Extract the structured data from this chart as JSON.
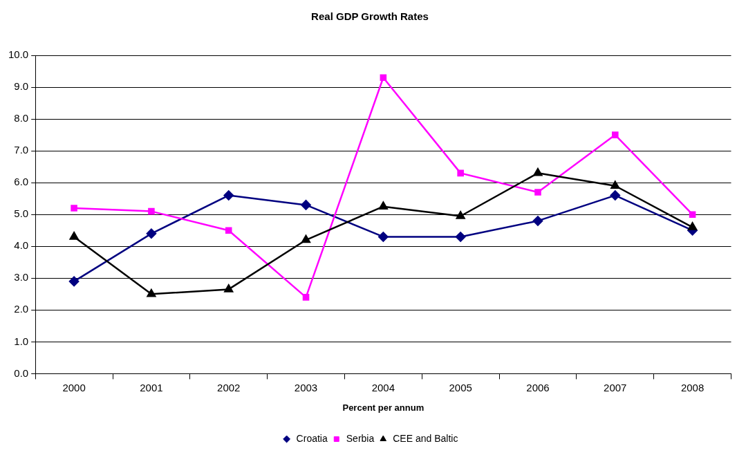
{
  "chart_data": {
    "type": "line",
    "title": "Real GDP Growth Rates",
    "xlabel": "Percent per annum",
    "categories": [
      "2000",
      "2001",
      "2002",
      "2003",
      "2004",
      "2005",
      "2006",
      "2007",
      "2008"
    ],
    "series": [
      {
        "name": "Croatia",
        "color": "#000080",
        "marker": "diamond",
        "values": [
          2.9,
          4.4,
          5.6,
          5.3,
          4.3,
          4.3,
          4.8,
          5.6,
          4.5
        ]
      },
      {
        "name": "Serbia",
        "color": "#ff00ff",
        "marker": "square",
        "values": [
          5.2,
          5.1,
          4.5,
          2.4,
          9.3,
          6.3,
          5.7,
          7.5,
          5.0
        ]
      },
      {
        "name": "CEE and Baltic",
        "color": "#000000",
        "marker": "triangle",
        "values": [
          4.3,
          2.5,
          2.65,
          4.2,
          5.25,
          4.95,
          6.3,
          5.9,
          4.6
        ]
      }
    ],
    "ylim": [
      0,
      10
    ],
    "yticks": [
      {
        "value": 0,
        "label": "0.0"
      },
      {
        "value": 1,
        "label": "1.0"
      },
      {
        "value": 2,
        "label": "2.0"
      },
      {
        "value": 3,
        "label": "3.0"
      },
      {
        "value": 4,
        "label": "4.0"
      },
      {
        "value": 5,
        "label": "5.0"
      },
      {
        "value": 6,
        "label": "6.0"
      },
      {
        "value": 7,
        "label": "7.0"
      },
      {
        "value": 8,
        "label": "8.0"
      },
      {
        "value": 9,
        "label": "9.0"
      },
      {
        "value": 10,
        "label": "10.0"
      }
    ],
    "grid": "y",
    "legend": "bottom",
    "line_style": "solid"
  }
}
